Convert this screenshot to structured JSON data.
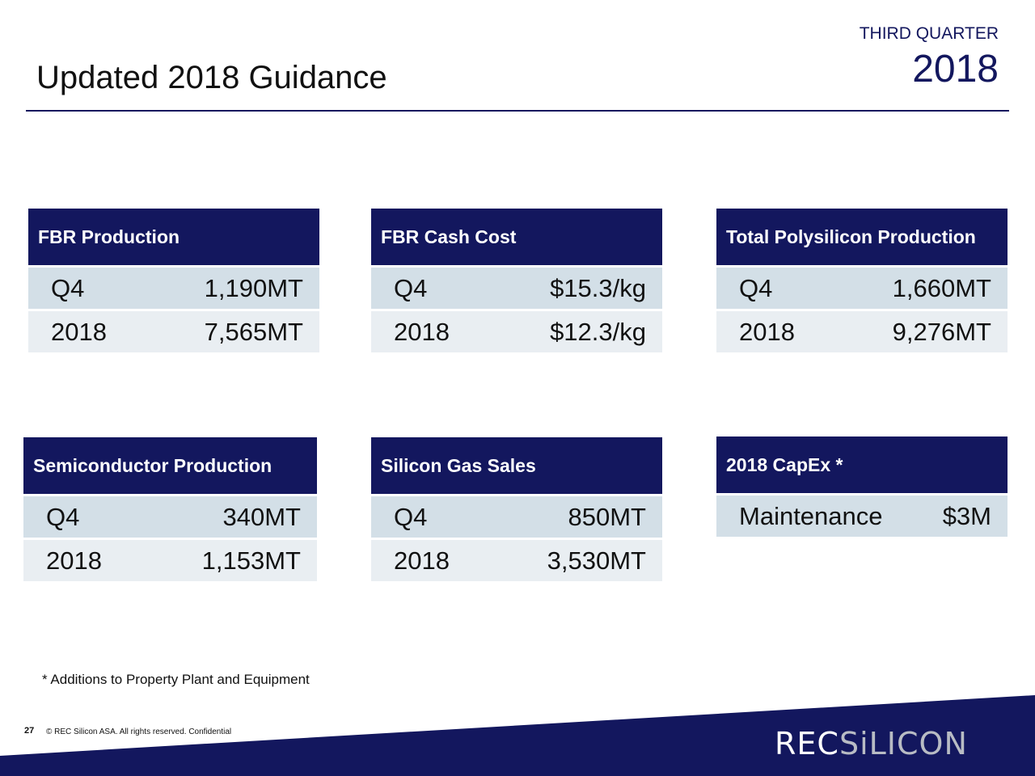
{
  "header": {
    "title": "Updated 2018 Guidance",
    "quarter": "THIRD QUARTER",
    "year": "2018"
  },
  "cards": [
    {
      "title": "FBR Production",
      "rows": [
        {
          "label": "Q4",
          "value": "1,190MT"
        },
        {
          "label": "2018",
          "value": "7,565MT"
        }
      ]
    },
    {
      "title": "FBR Cash Cost",
      "rows": [
        {
          "label": "Q4",
          "value": "$15.3/kg"
        },
        {
          "label": "2018",
          "value": "$12.3/kg"
        }
      ]
    },
    {
      "title": "Total Polysilicon Production",
      "rows": [
        {
          "label": "Q4",
          "value": "1,660MT"
        },
        {
          "label": "2018",
          "value": "9,276MT"
        }
      ]
    },
    {
      "title": "Semiconductor Production",
      "rows": [
        {
          "label": "Q4",
          "value": "340MT"
        },
        {
          "label": "2018",
          "value": "1,153MT"
        }
      ]
    },
    {
      "title": "Silicon Gas Sales",
      "rows": [
        {
          "label": "Q4",
          "value": "850MT"
        },
        {
          "label": "2018",
          "value": "3,530MT"
        }
      ]
    },
    {
      "title": "2018 CapEx *",
      "rows": [
        {
          "label": "Maintenance",
          "value": "$3M"
        }
      ]
    }
  ],
  "footnote": "* Additions to Property Plant and Equipment",
  "footer": {
    "page": "27",
    "copyright": "© REC Silicon ASA. All rights reserved. Confidential",
    "logo_rec": "REC",
    "logo_silicon": "SiLICON"
  },
  "colors": {
    "navy": "#13175e",
    "row_dark": "#d3dfe7",
    "row_light": "#e9eef2"
  }
}
